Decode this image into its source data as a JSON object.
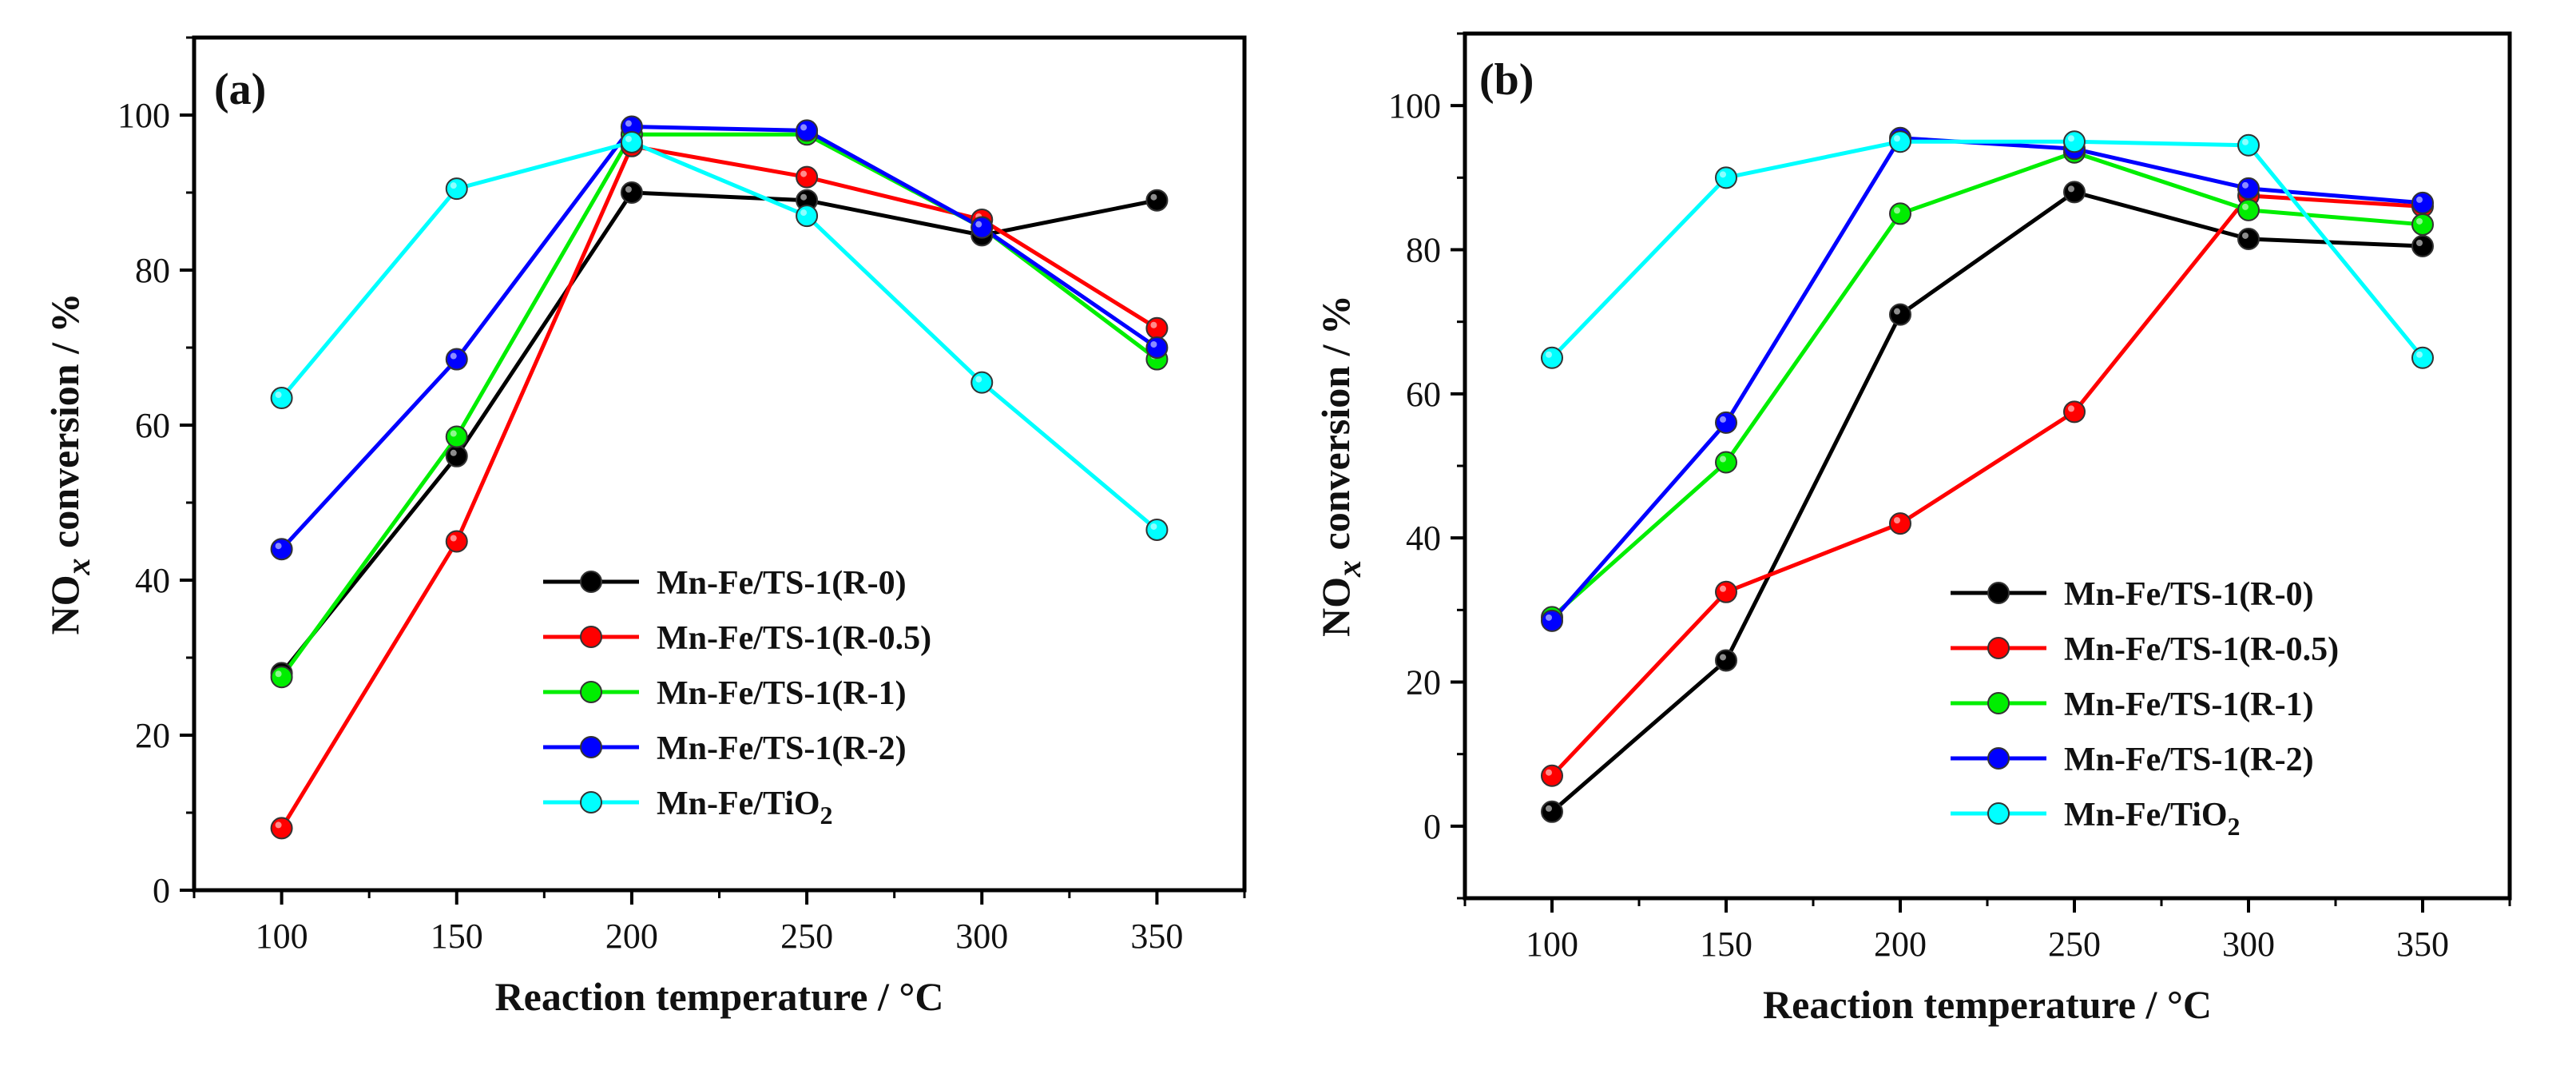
{
  "chart_data": [
    {
      "type": "line",
      "panel_label": "(a)",
      "xlabel": "Reaction temperature / °C",
      "ylabel": {
        "main": "NO",
        "sub": "x",
        "rest": " conversion / %"
      },
      "x": [
        100,
        150,
        200,
        250,
        300,
        350
      ],
      "xlim": [
        75,
        375
      ],
      "ylim": [
        0,
        110
      ],
      "xticks": [
        100,
        150,
        200,
        250,
        300,
        350
      ],
      "yticks": [
        0,
        20,
        40,
        60,
        80,
        100
      ],
      "legend_location": "center-right",
      "series": [
        {
          "name": "Mn-Fe/TS-1(R-0)",
          "label_main": "Mn-Fe/TS-1(R-0)",
          "label_sub": "",
          "color": "#000000",
          "values": [
            28,
            56,
            90,
            89,
            84.5,
            89
          ]
        },
        {
          "name": "Mn-Fe/TS-1(R-0.5)",
          "label_main": "Mn-Fe/TS-1(R-0.5)",
          "label_sub": "",
          "color": "#ff0000",
          "values": [
            8,
            45,
            96,
            92,
            86.5,
            72.5
          ]
        },
        {
          "name": "Mn-Fe/TS-1(R-1)",
          "label_main": "Mn-Fe/TS-1(R-1)",
          "label_sub": "",
          "color": "#00ee00",
          "values": [
            27.5,
            58.5,
            97.5,
            97.5,
            85.5,
            68.5
          ]
        },
        {
          "name": "Mn-Fe/TS-1(R-2)",
          "label_main": "Mn-Fe/TS-1(R-2)",
          "label_sub": "",
          "color": "#0000ff",
          "values": [
            44,
            68.5,
            98.5,
            98,
            85.5,
            70
          ]
        },
        {
          "name": "Mn-Fe/TiO2",
          "label_main": "Mn-Fe/TiO",
          "label_sub": "2",
          "color": "#00ffff",
          "values": [
            63.5,
            90.5,
            96.5,
            87,
            65.5,
            46.5
          ]
        }
      ]
    },
    {
      "type": "line",
      "panel_label": "(b)",
      "xlabel": "Reaction temperature / °C",
      "ylabel": {
        "main": "NO",
        "sub": "x",
        "rest": " conversion / %"
      },
      "x": [
        100,
        150,
        200,
        250,
        300,
        350
      ],
      "xlim": [
        75,
        375
      ],
      "ylim": [
        -10,
        110
      ],
      "xticks": [
        100,
        150,
        200,
        250,
        300,
        350
      ],
      "yticks": [
        0,
        20,
        40,
        60,
        80,
        100
      ],
      "legend_location": "lower-right",
      "series": [
        {
          "name": "Mn-Fe/TS-1(R-0)",
          "label_main": "Mn-Fe/TS-1(R-0)",
          "label_sub": "",
          "color": "#000000",
          "values": [
            2,
            23,
            71,
            88,
            81.5,
            80.5
          ]
        },
        {
          "name": "Mn-Fe/TS-1(R-0.5)",
          "label_main": "Mn-Fe/TS-1(R-0.5)",
          "label_sub": "",
          "color": "#ff0000",
          "values": [
            7,
            32.5,
            42,
            57.5,
            87.5,
            86
          ]
        },
        {
          "name": "Mn-Fe/TS-1(R-1)",
          "label_main": "Mn-Fe/TS-1(R-1)",
          "label_sub": "",
          "color": "#00ee00",
          "values": [
            29,
            50.5,
            85,
            93.5,
            85.5,
            83.5
          ]
        },
        {
          "name": "Mn-Fe/TS-1(R-2)",
          "label_main": "Mn-Fe/TS-1(R-2)",
          "label_sub": "",
          "color": "#0000ff",
          "values": [
            28.5,
            56,
            95.5,
            94,
            88.5,
            86.5
          ]
        },
        {
          "name": "Mn-Fe/TiO2",
          "label_main": "Mn-Fe/TiO",
          "label_sub": "2",
          "color": "#00ffff",
          "values": [
            65,
            90,
            95,
            95,
            94.5,
            65
          ]
        }
      ]
    }
  ]
}
